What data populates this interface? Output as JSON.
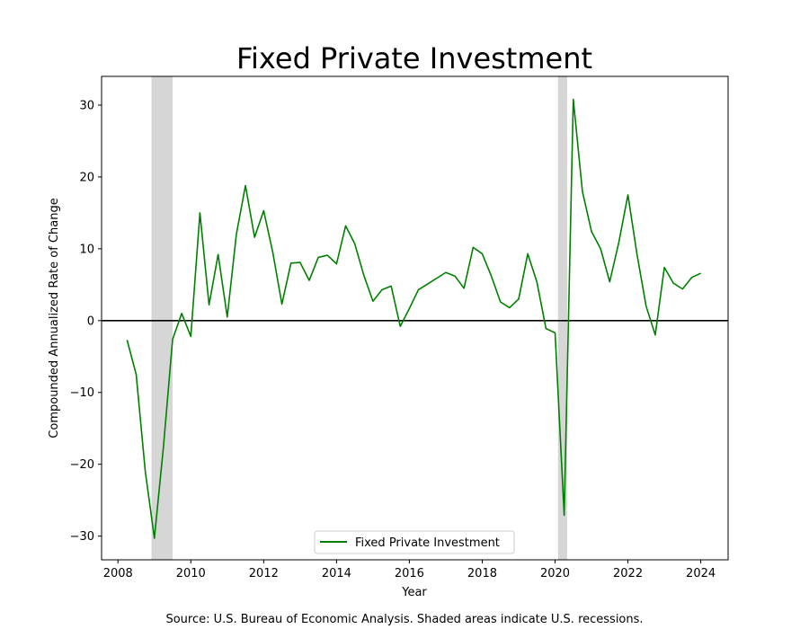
{
  "chart_data": {
    "type": "line",
    "title": "Fixed Private Investment",
    "xlabel": "Year",
    "ylabel": "Compounded Annualized Rate of Change",
    "caption": "Source: U.S. Bureau of Economic Analysis. Shaded areas indicate U.S. recessions.",
    "xlim": [
      2007.55,
      2024.75
    ],
    "ylim": [
      -33.3,
      34.0
    ],
    "x_ticks": [
      2008,
      2010,
      2012,
      2014,
      2016,
      2018,
      2020,
      2022,
      2024
    ],
    "x_tick_labels": [
      "2008",
      "2010",
      "2012",
      "2014",
      "2016",
      "2018",
      "2020",
      "2022",
      "2024"
    ],
    "y_ticks": [
      -30,
      -20,
      -10,
      0,
      10,
      20,
      30
    ],
    "y_tick_labels": [
      "−30",
      "−20",
      "−10",
      "0",
      "10",
      "20",
      "30"
    ],
    "grid": false,
    "zero_line": true,
    "legend_position": "lower center",
    "recessions": [
      {
        "start": 2008.92,
        "end": 2009.5
      },
      {
        "start": 2020.08,
        "end": 2020.33
      }
    ],
    "series": [
      {
        "name": "Fixed Private Investment",
        "color": "#008000",
        "x": [
          2008.25,
          2008.5,
          2008.75,
          2009.0,
          2009.25,
          2009.5,
          2009.75,
          2010.0,
          2010.25,
          2010.5,
          2010.75,
          2011.0,
          2011.25,
          2011.5,
          2011.75,
          2012.0,
          2012.25,
          2012.5,
          2012.75,
          2013.0,
          2013.25,
          2013.5,
          2013.75,
          2014.0,
          2014.25,
          2014.5,
          2014.75,
          2015.0,
          2015.25,
          2015.5,
          2015.75,
          2016.0,
          2016.25,
          2016.5,
          2016.75,
          2017.0,
          2017.25,
          2017.5,
          2017.75,
          2018.0,
          2018.25,
          2018.5,
          2018.75,
          2019.0,
          2019.25,
          2019.5,
          2019.75,
          2020.0,
          2020.25,
          2020.5,
          2020.75,
          2021.0,
          2021.25,
          2021.5,
          2021.75,
          2022.0,
          2022.25,
          2022.5,
          2022.75,
          2023.0,
          2023.25,
          2023.5,
          2023.75,
          2024.0
        ],
        "y": [
          -2.7,
          -7.5,
          -21.0,
          -30.3,
          -17.5,
          -2.6,
          1.0,
          -2.2,
          15.0,
          2.2,
          9.2,
          0.5,
          12.0,
          18.8,
          11.6,
          15.3,
          9.5,
          2.3,
          8.0,
          8.1,
          5.6,
          8.8,
          9.1,
          7.9,
          13.2,
          10.7,
          6.3,
          2.7,
          4.3,
          4.8,
          -0.8,
          1.7,
          4.3,
          5.1,
          5.9,
          6.7,
          6.2,
          4.5,
          10.2,
          9.3,
          6.2,
          2.6,
          1.8,
          3.0,
          9.3,
          5.4,
          -1.1,
          -1.7,
          -27.1,
          30.8,
          18.0,
          12.4,
          10.0,
          5.4,
          10.9,
          17.5,
          9.2,
          2.0,
          -2.0,
          7.4,
          5.2,
          4.4,
          6.0,
          6.6
        ]
      }
    ]
  }
}
